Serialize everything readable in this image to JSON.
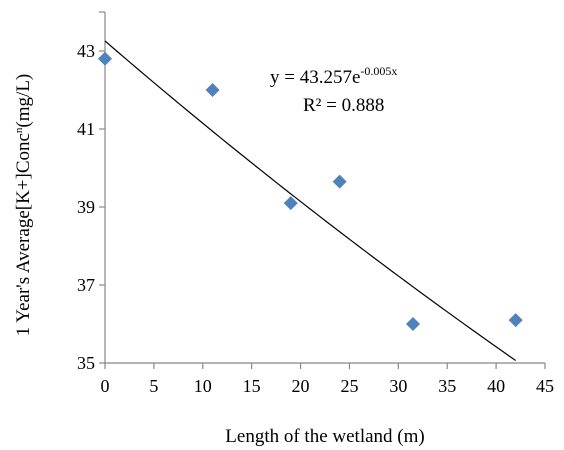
{
  "chart_data": {
    "type": "scatter",
    "xlabel": "Length of the wetland (m)",
    "ylabel_main": "1 Year's Average[K+]Conc",
    "ylabel_sup": "n",
    "ylabel_unit": "(mg/L)",
    "xlim": [
      0,
      45
    ],
    "ylim": [
      35,
      44
    ],
    "x_ticks": [
      0,
      5,
      10,
      15,
      20,
      25,
      30,
      35,
      40,
      45
    ],
    "y_ticks": [
      35,
      37,
      39,
      41,
      43
    ],
    "grid": false,
    "legend": "none",
    "marker": "diamond",
    "marker_color": "#4F81BD",
    "series": [
      {
        "x": [
          0,
          11,
          19,
          24,
          31.5,
          42
        ],
        "y": [
          42.8,
          42.0,
          39.1,
          39.65,
          36.0,
          36.1
        ]
      }
    ],
    "trendline": {
      "type": "exponential",
      "a": 43.257,
      "b": -0.005,
      "x_range": [
        0,
        42
      ],
      "color": "#000000"
    },
    "annotation": {
      "equation_prefix": "y = 43.257e",
      "equation_exponent": "-0.005x",
      "r2_label": "R² = 0.888"
    }
  }
}
